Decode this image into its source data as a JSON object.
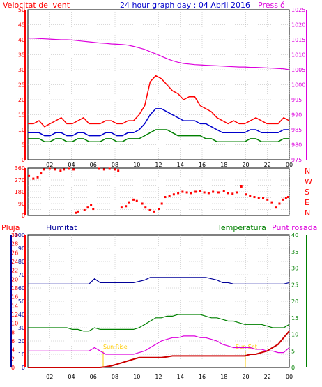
{
  "header": {
    "left_label": "Velocitat del vent",
    "title": "24 hour graph day : 04 Abril 2016",
    "right_label": "Pressió"
  },
  "colors": {
    "red": "#ff0000",
    "blue": "#0000cc",
    "green": "#008000",
    "magenta": "#dd00dd",
    "navy": "#000099",
    "dark_red": "#cc0000",
    "yellow": "#ffcc00",
    "grid": "#b0b0b0"
  },
  "time_ticks": [
    "02",
    "04",
    "06",
    "08",
    "10",
    "12",
    "14",
    "16",
    "18",
    "20",
    "22",
    "00"
  ],
  "chart_data": [
    {
      "type": "line",
      "ylabel": "Velocitat del vent",
      "y2label": "Pressió",
      "ylim": [
        0,
        50
      ],
      "y2lim": [
        975,
        1025
      ],
      "y_ticks": [
        0,
        5,
        10,
        15,
        20,
        25,
        30,
        35,
        40,
        45,
        50
      ],
      "y2_ticks": [
        975,
        980,
        985,
        990,
        995,
        1000,
        1005,
        1010,
        1015,
        1020,
        1025
      ],
      "series": [
        {
          "color": "#ff0000",
          "values": [
            12,
            12,
            13,
            11,
            12,
            13,
            14,
            12,
            12,
            13,
            14,
            12,
            12,
            12,
            13,
            13,
            12,
            12,
            13,
            13,
            15,
            18,
            26,
            28,
            27,
            25,
            23,
            22,
            20,
            21,
            21,
            18,
            17,
            16,
            14,
            13,
            12,
            13,
            12,
            12,
            13,
            14,
            13,
            12,
            12,
            12,
            14,
            13
          ]
        },
        {
          "color": "#0000cc",
          "values": [
            9,
            9,
            9,
            8,
            8,
            9,
            9,
            8,
            8,
            9,
            9,
            8,
            8,
            8,
            9,
            9,
            8,
            8,
            9,
            9,
            10,
            12,
            15,
            17,
            17,
            16,
            15,
            14,
            13,
            13,
            13,
            12,
            12,
            11,
            10,
            9,
            9,
            9,
            9,
            9,
            10,
            10,
            9,
            9,
            9,
            9,
            10,
            10
          ]
        },
        {
          "color": "#008000",
          "values": [
            7,
            7,
            7,
            6,
            6,
            7,
            7,
            6,
            6,
            7,
            7,
            6,
            6,
            6,
            7,
            7,
            6,
            6,
            7,
            7,
            7,
            8,
            9,
            10,
            10,
            10,
            9,
            8,
            8,
            8,
            8,
            8,
            7,
            7,
            6,
            6,
            6,
            6,
            6,
            6,
            7,
            7,
            6,
            6,
            6,
            6,
            7,
            7
          ]
        },
        {
          "color": "#dd00dd",
          "axis": "y2",
          "values": [
            1015.5,
            1015.5,
            1015.4,
            1015.3,
            1015.2,
            1015.1,
            1015.0,
            1015.0,
            1014.9,
            1014.7,
            1014.5,
            1014.3,
            1014.1,
            1013.9,
            1013.8,
            1013.6,
            1013.5,
            1013.4,
            1013.2,
            1012.8,
            1012.3,
            1011.8,
            1011.0,
            1010.3,
            1009.5,
            1008.7,
            1008.0,
            1007.5,
            1007.1,
            1006.9,
            1006.7,
            1006.6,
            1006.5,
            1006.4,
            1006.3,
            1006.2,
            1006.1,
            1006.0,
            1005.9,
            1005.9,
            1005.8,
            1005.8,
            1005.7,
            1005.6,
            1005.5,
            1005.4,
            1005.3,
            1005.0
          ]
        }
      ]
    },
    {
      "type": "scatter",
      "ylabel": "",
      "y_ticks": [
        0,
        45,
        90,
        135,
        180,
        225,
        270,
        315,
        360
      ],
      "ylim": [
        0,
        360
      ],
      "direction_labels": [
        "N",
        "W",
        "S",
        "E",
        "N"
      ],
      "series": [
        {
          "color": "#ff0000",
          "points": [
            [
              0.1,
              300
            ],
            [
              0.5,
              280
            ],
            [
              0.9,
              290
            ],
            [
              1.2,
              320
            ],
            [
              1.5,
              350
            ],
            [
              2.0,
              355
            ],
            [
              2.5,
              350
            ],
            [
              3.0,
              340
            ],
            [
              3.3,
              350
            ],
            [
              3.8,
              355
            ],
            [
              4.2,
              350
            ],
            [
              4.4,
              20
            ],
            [
              4.6,
              30
            ],
            [
              5.2,
              40
            ],
            [
              5.5,
              60
            ],
            [
              5.8,
              80
            ],
            [
              6.0,
              50
            ],
            [
              6.5,
              355
            ],
            [
              7.0,
              350
            ],
            [
              7.5,
              355
            ],
            [
              8.0,
              350
            ],
            [
              8.3,
              340
            ],
            [
              8.6,
              60
            ],
            [
              9.0,
              70
            ],
            [
              9.3,
              100
            ],
            [
              9.7,
              120
            ],
            [
              10.0,
              110
            ],
            [
              10.5,
              90
            ],
            [
              10.8,
              60
            ],
            [
              11.2,
              40
            ],
            [
              11.6,
              30
            ],
            [
              12.0,
              50
            ],
            [
              12.3,
              90
            ],
            [
              12.6,
              140
            ],
            [
              13.0,
              150
            ],
            [
              13.4,
              160
            ],
            [
              13.8,
              170
            ],
            [
              14.2,
              180
            ],
            [
              14.6,
              175
            ],
            [
              15.0,
              170
            ],
            [
              15.4,
              180
            ],
            [
              15.8,
              185
            ],
            [
              16.2,
              175
            ],
            [
              16.6,
              170
            ],
            [
              17.0,
              180
            ],
            [
              17.5,
              175
            ],
            [
              18.0,
              185
            ],
            [
              18.4,
              170
            ],
            [
              18.8,
              165
            ],
            [
              19.2,
              175
            ],
            [
              19.6,
              220
            ],
            [
              20.0,
              160
            ],
            [
              20.4,
              150
            ],
            [
              20.8,
              140
            ],
            [
              21.2,
              135
            ],
            [
              21.6,
              130
            ],
            [
              22.0,
              120
            ],
            [
              22.4,
              100
            ],
            [
              22.8,
              60
            ],
            [
              23.1,
              90
            ],
            [
              23.4,
              120
            ],
            [
              23.7,
              130
            ],
            [
              23.9,
              140
            ]
          ]
        }
      ]
    },
    {
      "type": "line",
      "ylabel": "Pluja",
      "y_ticks": [
        0,
        10,
        20,
        30,
        40,
        50,
        60,
        70,
        80,
        90,
        100
      ],
      "y_ticks_temp": [
        0,
        2,
        4,
        6,
        8,
        10,
        12,
        14,
        16,
        18,
        20,
        22,
        24,
        26,
        28,
        30
      ],
      "y_ticks_right": [
        0,
        5,
        10,
        15,
        20,
        25,
        30,
        35,
        40
      ],
      "ylim": [
        0,
        100
      ],
      "y2lim": [
        0,
        40
      ],
      "series_labels": {
        "humidity": "Humitat",
        "temperature": "Temperatura",
        "dewpoint": "Punt rosada"
      },
      "annotations": [
        "Sun Rise",
        "Sun Set"
      ],
      "series": [
        {
          "color": "#000099",
          "values": [
            63,
            63,
            63,
            63,
            63,
            63,
            63,
            63,
            63,
            63,
            63,
            63,
            67,
            64,
            64,
            64,
            64,
            64,
            64,
            64,
            65,
            66,
            68,
            68,
            68,
            68,
            68,
            68,
            68,
            68,
            68,
            68,
            68,
            67,
            66,
            64,
            64,
            63,
            63,
            63,
            63,
            63,
            63,
            63,
            63,
            63,
            63,
            64
          ]
        },
        {
          "color": "#008000",
          "axis": "y2",
          "values": [
            12,
            12,
            12,
            12,
            12,
            12,
            12,
            12,
            11.5,
            11.5,
            11,
            11,
            12,
            11.5,
            11.5,
            11.5,
            11.5,
            11.5,
            11.5,
            11.5,
            12,
            13,
            14,
            15,
            15,
            15.5,
            15.5,
            16,
            16,
            16,
            16,
            16,
            15.5,
            15,
            15,
            14.5,
            14,
            14,
            13.5,
            13,
            13,
            13,
            13,
            12.5,
            12,
            12,
            12,
            13
          ]
        },
        {
          "color": "#dd00dd",
          "axis": "y2",
          "values": [
            5,
            5,
            5,
            5,
            5,
            5,
            5,
            5,
            5,
            5,
            5,
            5,
            6,
            5,
            4,
            4,
            4,
            4,
            4,
            4,
            4.5,
            5,
            6,
            7,
            8,
            8.5,
            9,
            9,
            9.5,
            9.5,
            9.5,
            9,
            9,
            8.5,
            8,
            7,
            6.5,
            6,
            6,
            6,
            6,
            5.5,
            5.5,
            5,
            5,
            4.5,
            4.5,
            6
          ]
        },
        {
          "color": "#cc0000",
          "axis": "y2",
          "values": [
            0,
            0,
            0,
            0,
            0,
            0,
            0,
            0,
            0,
            0,
            0,
            0,
            0,
            0,
            0.2,
            0.5,
            1,
            1.5,
            2,
            2.5,
            3,
            3,
            3,
            3,
            3,
            3.2,
            3.5,
            3.5,
            3.5,
            3.5,
            3.5,
            3.5,
            3.5,
            3.5,
            3.5,
            3.5,
            3.5,
            3.5,
            3.5,
            3.5,
            4,
            4,
            4.5,
            5,
            6,
            7,
            9,
            11
          ]
        }
      ]
    }
  ]
}
